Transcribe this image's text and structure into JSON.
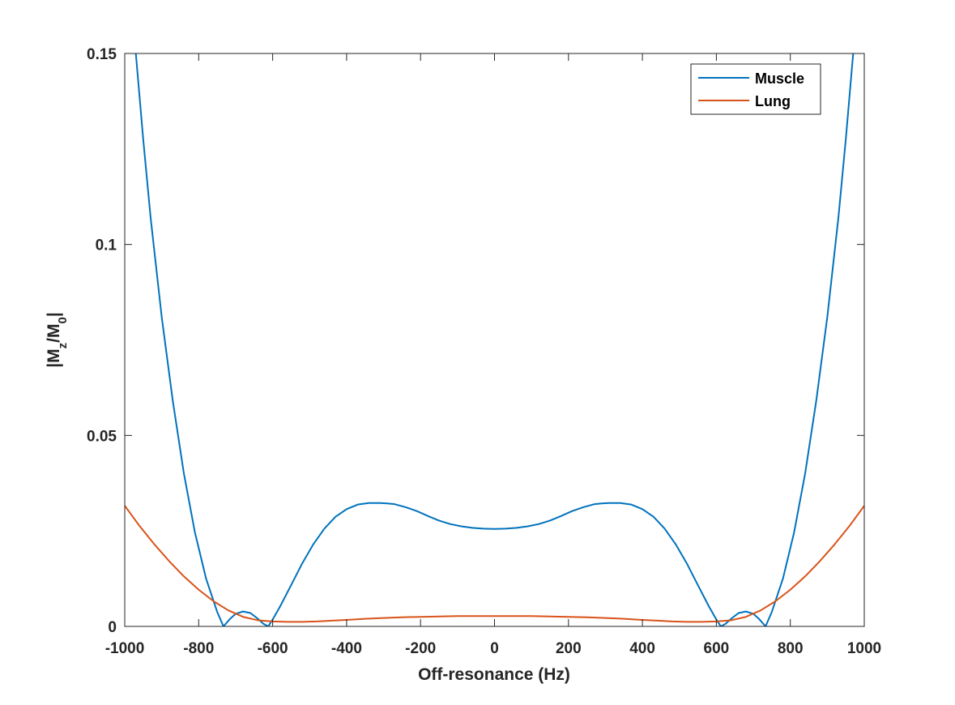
{
  "chart_data": {
    "type": "line",
    "xlabel": "Off-resonance (Hz)",
    "ylabel": {
      "text": "|M",
      "sub1": "z",
      "mid": "/M",
      "sub2": "0",
      "end": "|"
    },
    "xlim": [
      -1000,
      1000
    ],
    "ylim": [
      0,
      0.15
    ],
    "xticks": [
      -1000,
      -800,
      -600,
      -400,
      -200,
      0,
      200,
      400,
      600,
      800,
      1000
    ],
    "xtick_labels": [
      "-1000",
      "-800",
      "-600",
      "-400",
      "-200",
      "0",
      "200",
      "400",
      "600",
      "800",
      "1000"
    ],
    "yticks": [
      0,
      0.05,
      0.1,
      0.15
    ],
    "ytick_labels": [
      "0",
      "0.05",
      "0.1",
      "0.15"
    ],
    "grid": false,
    "legend_position": "top-right",
    "series": [
      {
        "name": "Muscle",
        "color": "#0072BD",
        "x": [
          -970,
          -950,
          -930,
          -900,
          -870,
          -840,
          -810,
          -780,
          -750,
          -733,
          -715,
          -700,
          -680,
          -660,
          -640,
          -625,
          -612,
          -600,
          -580,
          -550,
          -520,
          -490,
          -460,
          -430,
          -400,
          -370,
          -340,
          -310,
          -290,
          -270,
          -240,
          -210,
          -180,
          -150,
          -120,
          -90,
          -60,
          -30,
          0,
          30,
          60,
          90,
          120,
          150,
          180,
          210,
          240,
          270,
          290,
          310,
          340,
          370,
          400,
          430,
          460,
          490,
          520,
          550,
          580,
          600,
          612,
          625,
          640,
          660,
          680,
          700,
          715,
          733,
          750,
          780,
          810,
          840,
          870,
          900,
          930,
          950,
          970
        ],
        "y": [
          0.15,
          0.1275,
          0.107,
          0.081,
          0.059,
          0.04,
          0.0245,
          0.0125,
          0.0038,
          0.0,
          0.002,
          0.0033,
          0.0039,
          0.0035,
          0.002,
          0.0007,
          0.0,
          0.0018,
          0.0052,
          0.0108,
          0.0165,
          0.0215,
          0.0256,
          0.0287,
          0.0307,
          0.0319,
          0.0323,
          0.0323,
          0.0322,
          0.032,
          0.0312,
          0.0302,
          0.0289,
          0.0277,
          0.0268,
          0.0262,
          0.0258,
          0.0256,
          0.0255,
          0.0256,
          0.0258,
          0.0262,
          0.0268,
          0.0277,
          0.0289,
          0.0302,
          0.0312,
          0.032,
          0.0322,
          0.0323,
          0.0323,
          0.0319,
          0.0307,
          0.0287,
          0.0256,
          0.0215,
          0.0165,
          0.0108,
          0.0052,
          0.0018,
          0.0,
          0.0007,
          0.002,
          0.0035,
          0.0039,
          0.0033,
          0.002,
          0.0,
          0.0038,
          0.0125,
          0.0245,
          0.04,
          0.059,
          0.081,
          0.107,
          0.1275,
          0.15
        ]
      },
      {
        "name": "Lung",
        "color": "#D95319",
        "x": [
          -1000,
          -960,
          -920,
          -880,
          -840,
          -800,
          -760,
          -720,
          -680,
          -640,
          -600,
          -560,
          -520,
          -480,
          -440,
          -400,
          -350,
          -300,
          -250,
          -200,
          -150,
          -100,
          -50,
          0,
          50,
          100,
          150,
          200,
          250,
          300,
          350,
          400,
          440,
          480,
          520,
          560,
          600,
          640,
          680,
          720,
          760,
          800,
          840,
          880,
          920,
          960,
          1000
        ],
        "y": [
          0.0316,
          0.0263,
          0.0215,
          0.0171,
          0.0131,
          0.0096,
          0.0066,
          0.0042,
          0.0025,
          0.0016,
          0.0013,
          0.0012,
          0.0012,
          0.0013,
          0.0015,
          0.0017,
          0.002,
          0.0022,
          0.0024,
          0.0025,
          0.0026,
          0.0027,
          0.0027,
          0.0027,
          0.0027,
          0.0027,
          0.0026,
          0.0025,
          0.0024,
          0.0022,
          0.002,
          0.0017,
          0.0015,
          0.0013,
          0.0012,
          0.0012,
          0.0013,
          0.0016,
          0.0025,
          0.0042,
          0.0066,
          0.0096,
          0.0131,
          0.0171,
          0.0215,
          0.0263,
          0.0316
        ]
      }
    ]
  }
}
